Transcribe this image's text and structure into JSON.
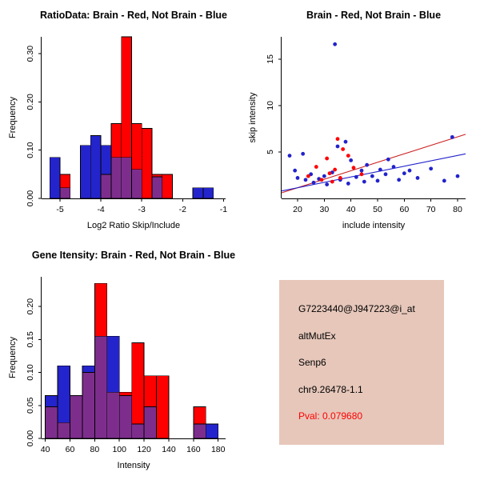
{
  "page": {
    "background": "#ffffff"
  },
  "info_panel": {
    "background": "#e6c7ba",
    "lines": [
      {
        "text": "G7223440@J947223@i_at",
        "color": "#000000"
      },
      {
        "text": "altMutEx",
        "color": "#000000"
      },
      {
        "text": "Senp6",
        "color": "#000000"
      },
      {
        "text": "chr9.26478-1.1",
        "color": "#000000"
      },
      {
        "text": "Pval: 0.079680",
        "color": "#ff0000"
      }
    ]
  },
  "chart_data": [
    {
      "id": "chart-ratio",
      "type": "bar",
      "subtype": "overlaid-histogram",
      "title": "RatioData: Brain - Red, Not Brain - Blue",
      "xlabel": "Log2 Ratio Skip/Include",
      "ylabel": "Frequency",
      "xlim": [
        -5.45,
        -0.95
      ],
      "ylim": [
        0,
        0.335
      ],
      "xticks": [
        -5,
        -4,
        -3,
        -2,
        -1
      ],
      "xtick_labels": [
        "-5",
        "-4",
        "-3",
        "-2",
        "-1"
      ],
      "yticks": [
        0,
        0.1,
        0.2,
        0.3
      ],
      "ytick_labels": [
        "0.00",
        "0.10",
        "0.20",
        "0.30"
      ],
      "bin_width": 0.25,
      "colors": {
        "red": "#ff0000",
        "blue": "#2424cc",
        "overlap": "#7d2e8c"
      },
      "legend": {
        "red": "Brain",
        "blue": "Not Brain"
      },
      "grid": false,
      "bins": [
        {
          "x0": -5.25,
          "red": 0,
          "blue": 0.085
        },
        {
          "x0": -5.0,
          "red": 0.05,
          "blue": 0.022
        },
        {
          "x0": -4.5,
          "red": 0,
          "blue": 0.11
        },
        {
          "x0": -4.25,
          "red": 0,
          "blue": 0.13
        },
        {
          "x0": -4.0,
          "red": 0.05,
          "blue": 0.11
        },
        {
          "x0": -3.75,
          "red": 0.155,
          "blue": 0.085
        },
        {
          "x0": -3.5,
          "red": 0.335,
          "blue": 0.085
        },
        {
          "x0": -3.25,
          "red": 0.155,
          "blue": 0.06
        },
        {
          "x0": -3.0,
          "red": 0.145,
          "blue": 0
        },
        {
          "x0": -2.75,
          "red": 0.05,
          "blue": 0.045
        },
        {
          "x0": -2.5,
          "red": 0.05,
          "blue": 0
        },
        {
          "x0": -1.75,
          "red": 0,
          "blue": 0.022
        },
        {
          "x0": -1.5,
          "red": 0,
          "blue": 0.022
        }
      ]
    },
    {
      "id": "chart-scatter",
      "type": "scatter",
      "title": "Brain - Red, Not Brain - Blue",
      "xlabel": "include intensity",
      "ylabel": "skip intensity",
      "xlim": [
        14,
        83
      ],
      "ylim": [
        0,
        17.4
      ],
      "xticks": [
        20,
        30,
        40,
        50,
        60,
        70,
        80
      ],
      "xtick_labels": [
        "20",
        "30",
        "40",
        "50",
        "60",
        "70",
        "80"
      ],
      "yticks": [
        5,
        10,
        15
      ],
      "ytick_labels": [
        "5",
        "10",
        "15"
      ],
      "grid": false,
      "series": [
        {
          "name": "Not Brain",
          "color": "#2222cc",
          "points": [
            [
              17,
              4.6
            ],
            [
              19,
              3.0
            ],
            [
              20,
              2.2
            ],
            [
              22,
              4.8
            ],
            [
              23,
              2.0
            ],
            [
              25,
              2.6
            ],
            [
              26,
              1.7
            ],
            [
              28,
              2.1
            ],
            [
              30,
              2.4
            ],
            [
              31,
              1.5
            ],
            [
              33,
              2.8
            ],
            [
              34,
              16.6
            ],
            [
              35,
              5.6
            ],
            [
              36,
              2.0
            ],
            [
              38,
              6.1
            ],
            [
              39,
              1.6
            ],
            [
              40,
              4.1
            ],
            [
              42,
              2.3
            ],
            [
              44,
              3.0
            ],
            [
              45,
              1.8
            ],
            [
              46,
              3.6
            ],
            [
              48,
              2.4
            ],
            [
              50,
              1.9
            ],
            [
              51,
              3.1
            ],
            [
              53,
              2.6
            ],
            [
              54,
              4.2
            ],
            [
              56,
              3.4
            ],
            [
              58,
              2.0
            ],
            [
              60,
              2.7
            ],
            [
              62,
              3.0
            ],
            [
              65,
              2.2
            ],
            [
              70,
              3.2
            ],
            [
              75,
              1.9
            ],
            [
              78,
              6.6
            ],
            [
              80,
              2.4
            ]
          ]
        },
        {
          "name": "Brain",
          "color": "#ff0000",
          "points": [
            [
              24,
              2.4
            ],
            [
              27,
              3.4
            ],
            [
              29,
              2.0
            ],
            [
              31,
              4.3
            ],
            [
              32,
              2.7
            ],
            [
              33,
              1.8
            ],
            [
              34,
              3.1
            ],
            [
              35,
              6.4
            ],
            [
              36,
              2.2
            ],
            [
              37,
              5.3
            ],
            [
              39,
              4.6
            ],
            [
              41,
              3.3
            ],
            [
              44,
              2.6
            ]
          ]
        }
      ],
      "lines": [
        {
          "name": "brain-fit",
          "color": "#cc2020",
          "x1": 14,
          "y1": 0.6,
          "x2": 83,
          "y2": 6.9
        },
        {
          "name": "notbrain-fit",
          "color": "#2222cc",
          "x1": 14,
          "y1": 0.8,
          "x2": 83,
          "y2": 4.8
        }
      ]
    },
    {
      "id": "chart-gene",
      "type": "bar",
      "subtype": "overlaid-histogram",
      "title": "Gene Itensity: Brain - Red, Not Brain - Blue",
      "xlabel": "Intensity",
      "ylabel": "Frequency",
      "xlim": [
        37,
        186
      ],
      "ylim": [
        0,
        0.245
      ],
      "xticks": [
        40,
        60,
        80,
        100,
        120,
        140,
        160,
        180
      ],
      "xtick_labels": [
        "40",
        "60",
        "80",
        "100",
        "120",
        "140",
        "160",
        "180"
      ],
      "yticks": [
        0,
        0.05,
        0.1,
        0.15,
        0.2
      ],
      "ytick_labels": [
        "0.00",
        "0.05",
        "0.10",
        "0.15",
        "0.20"
      ],
      "bin_width": 10,
      "colors": {
        "red": "#ff0000",
        "blue": "#2424cc",
        "overlap": "#7d2e8c"
      },
      "legend": {
        "red": "Brain",
        "blue": "Not Brain"
      },
      "grid": false,
      "bins": [
        {
          "x0": 40,
          "red": 0.048,
          "blue": 0.065
        },
        {
          "x0": 50,
          "red": 0.024,
          "blue": 0.11
        },
        {
          "x0": 60,
          "red": 0.065,
          "blue": 0.065
        },
        {
          "x0": 70,
          "red": 0.1,
          "blue": 0.11
        },
        {
          "x0": 80,
          "red": 0.235,
          "blue": 0.155
        },
        {
          "x0": 90,
          "red": 0.07,
          "blue": 0.155
        },
        {
          "x0": 100,
          "red": 0.07,
          "blue": 0.065
        },
        {
          "x0": 110,
          "red": 0.145,
          "blue": 0.022
        },
        {
          "x0": 120,
          "red": 0.095,
          "blue": 0.048
        },
        {
          "x0": 130,
          "red": 0.095,
          "blue": 0
        },
        {
          "x0": 160,
          "red": 0.048,
          "blue": 0.022
        },
        {
          "x0": 170,
          "red": 0,
          "blue": 0.022
        }
      ]
    }
  ]
}
